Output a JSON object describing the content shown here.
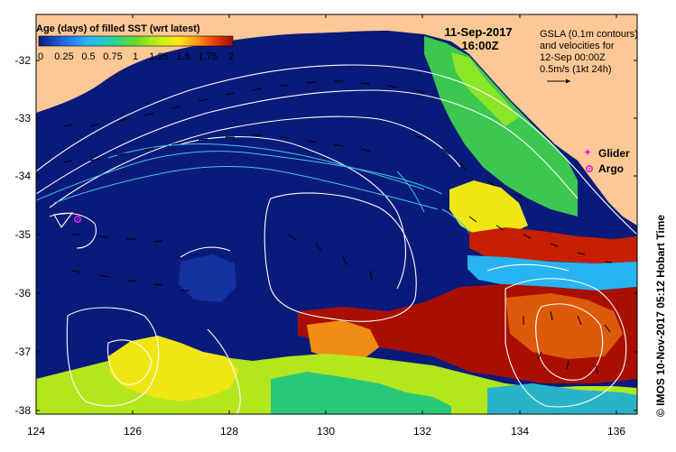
{
  "map": {
    "date": "11-Sep-2017",
    "time": "16:00Z",
    "colorbar": {
      "title": "Age (days) of filled SST (wrt latest)",
      "ticks": [
        "0",
        "0.25",
        "0.5",
        "0.75",
        "1",
        "1.25",
        "1.5",
        "1.75",
        "2"
      ]
    },
    "gsla_note": [
      "GSLA (0.1m contours)",
      "and velocities for",
      "12-Sep 00:00Z",
      "0.5m/s (1kt 24h)"
    ],
    "legend": {
      "glider": "Glider",
      "argo": "Argo"
    },
    "credit": "© IMOS 10-Nov-2017 05:12 Hobart Time",
    "x_ticks": [
      "124",
      "126",
      "128",
      "130",
      "132",
      "134",
      "136"
    ],
    "y_ticks": [
      "-32",
      "-33",
      "-34",
      "-35",
      "-36",
      "-37",
      "-38"
    ],
    "argo_float": {
      "lon": 124.9,
      "lat": -34.72
    },
    "colors": {
      "land": "#fcc896",
      "age_0": "#0a1a7a",
      "age_high": "#a80f00",
      "contour": "#ffffff",
      "track": "#3cc8e6",
      "glider": "#e61ee6",
      "argo": "#e61ee6"
    }
  }
}
